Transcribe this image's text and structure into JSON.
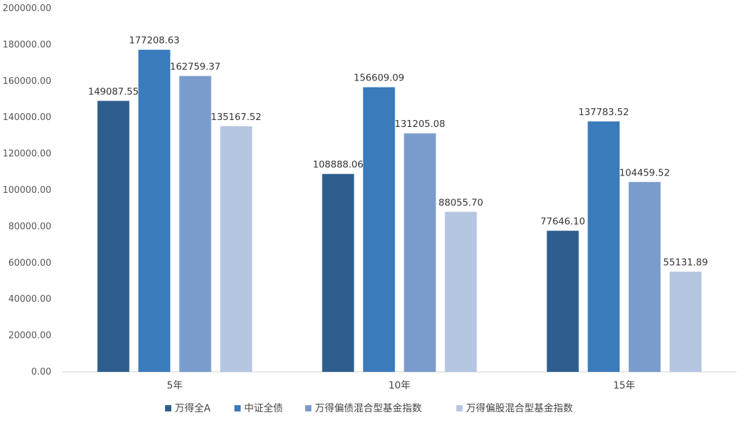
{
  "chart_data": {
    "type": "bar",
    "title": "",
    "xlabel": "",
    "ylabel": "",
    "categories": [
      "5年",
      "10年",
      "15年"
    ],
    "ylim": [
      0,
      200000
    ],
    "yticks": [
      0,
      20000,
      40000,
      60000,
      80000,
      100000,
      120000,
      140000,
      160000,
      180000,
      200000
    ],
    "ytick_labels": [
      "0.00",
      "20000.00",
      "40000.00",
      "60000.00",
      "80000.00",
      "100000.00",
      "120000.00",
      "140000.00",
      "160000.00",
      "180000.00",
      "200000.00"
    ],
    "grid": false,
    "legend_position": "bottom",
    "series": [
      {
        "name": "万得全A",
        "color": "#2e5e8e",
        "values": [
          149087.55,
          108888.06,
          77646.1
        ],
        "labels": [
          "149087.55",
          "108888.06",
          "77646.10"
        ]
      },
      {
        "name": "中证全债",
        "color": "#3a7bbb",
        "values": [
          177208.63,
          156609.09,
          137783.52
        ],
        "labels": [
          "177208.63",
          "156609.09",
          "137783.52"
        ]
      },
      {
        "name": "万得偏债混合型基金指数",
        "color": "#7a9ccc",
        "values": [
          162759.37,
          131205.08,
          104459.52
        ],
        "labels": [
          "162759.37",
          "131205.08",
          "104459.52"
        ]
      },
      {
        "name": "万得偏股混合型基金指数",
        "color": "#b5c6e1",
        "values": [
          135167.52,
          88055.7,
          55131.89
        ],
        "labels": [
          "135167.52",
          "88055.70",
          "55131.89"
        ]
      }
    ]
  }
}
